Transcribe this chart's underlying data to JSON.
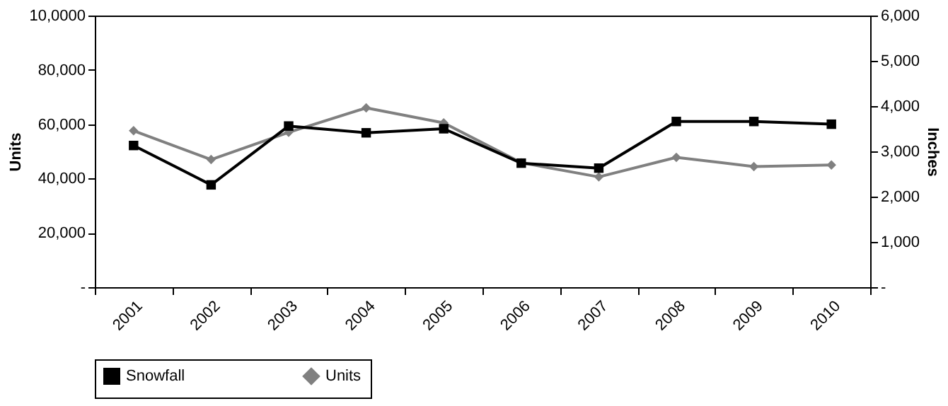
{
  "chart_data": {
    "type": "line",
    "ylabel": "Units",
    "y2label": "Inches",
    "categories": [
      "2001",
      "2002",
      "2003",
      "2004",
      "2005",
      "2006",
      "2007",
      "2008",
      "2009",
      "2010"
    ],
    "series": [
      {
        "name": "Snowfall",
        "color": "#000000",
        "marker": "square",
        "axis": "y2",
        "values": [
          3130,
          2260,
          3560,
          3410,
          3500,
          2740,
          2630,
          3660,
          3660,
          3600
        ]
      },
      {
        "name": "Units",
        "color": "#808080",
        "marker": "diamond",
        "values": [
          57600,
          47000,
          57000,
          66000,
          60500,
          45800,
          40600,
          47800,
          44400,
          45000
        ]
      }
    ],
    "ylim": [
      0,
      100000
    ],
    "yticks": [
      {
        "value": 0,
        "label": "-"
      },
      {
        "value": 20000,
        "label": "20,000"
      },
      {
        "value": 40000,
        "label": "40,000"
      },
      {
        "value": 60000,
        "label": "60,000"
      },
      {
        "value": 80000,
        "label": "80,000"
      },
      {
        "value": 100000,
        "label": "10,0000"
      }
    ],
    "y2lim": [
      0,
      6000
    ],
    "y2ticks": [
      {
        "value": 0,
        "label": "-"
      },
      {
        "value": 1000,
        "label": "1,000"
      },
      {
        "value": 2000,
        "label": "2,000"
      },
      {
        "value": 3000,
        "label": "3,000"
      },
      {
        "value": 4000,
        "label": "4,000"
      },
      {
        "value": 5000,
        "label": "5,000"
      },
      {
        "value": 6000,
        "label": "6,000"
      }
    ],
    "grid": false,
    "legend": "bottom",
    "line_style": "solid"
  }
}
